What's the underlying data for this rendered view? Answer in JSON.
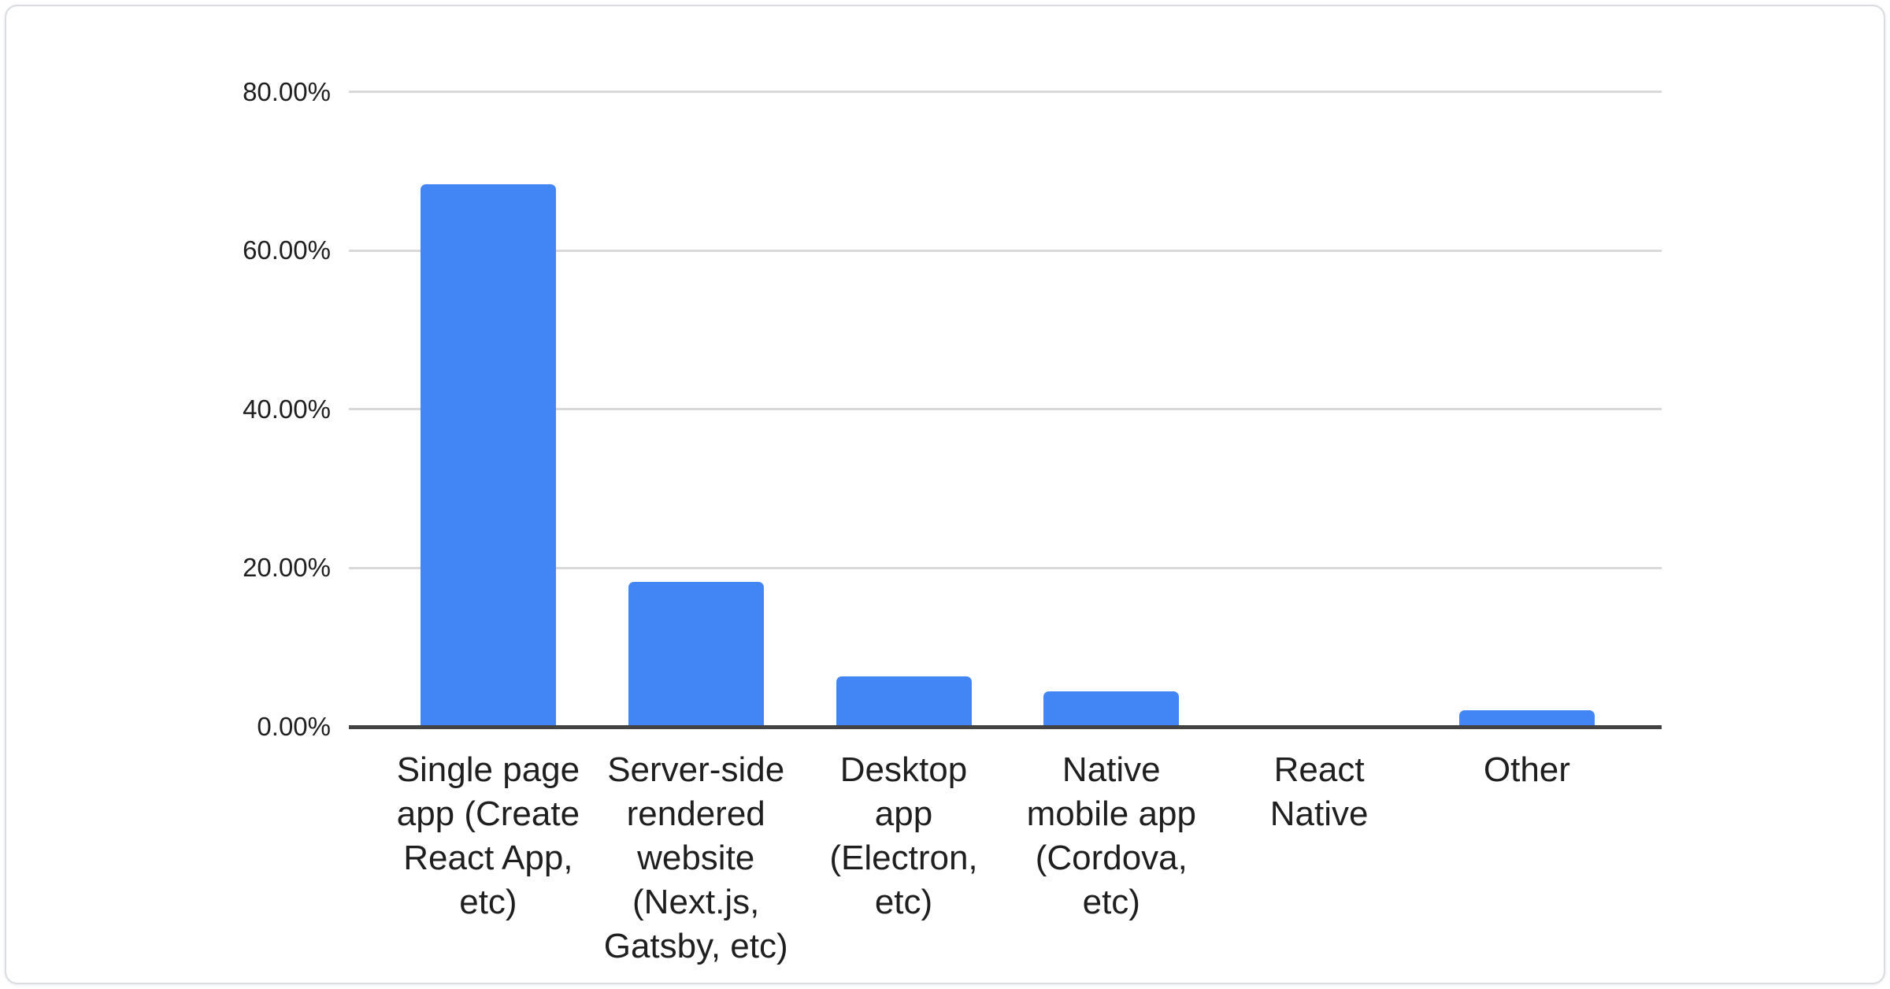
{
  "chart_data": {
    "type": "bar",
    "title": "",
    "xlabel": "",
    "ylabel": "",
    "unit": "percent",
    "ylim": [
      0,
      80
    ],
    "grid": true,
    "legend": "none",
    "categories": [
      "Single page app (Create React App, etc)",
      "Server-side rendered website (Next.js, Gatsby, etc)",
      "Desktop app (Electron, etc)",
      "Native mobile app (Cordova, etc)",
      "React Native",
      "Other"
    ],
    "category_label_lines": [
      [
        "Single page",
        "app (Create",
        "React App,",
        "etc)"
      ],
      [
        "Server-side",
        "rendered",
        "website",
        "(Next.js,",
        "Gatsby, etc)"
      ],
      [
        "Desktop",
        "app",
        "(Electron,",
        "etc)"
      ],
      [
        "Native",
        "mobile app",
        "(Cordova,",
        "etc)"
      ],
      [
        "React",
        "Native"
      ],
      [
        "Other"
      ]
    ],
    "values": [
      68.4,
      18.3,
      6.3,
      4.5,
      0,
      2.1
    ],
    "yticks": [
      {
        "label": "0.00%",
        "value": 0
      },
      {
        "label": "20.00%",
        "value": 20
      },
      {
        "label": "40.00%",
        "value": 40
      },
      {
        "label": "60.00%",
        "value": 60
      },
      {
        "label": "80.00%",
        "value": 80
      }
    ],
    "colors": {
      "bar": "#4285f4",
      "gridline": "#d9d9d9",
      "axis": "#424242",
      "text": "#1f1f1f",
      "card_border": "#dadce0",
      "card_background": "#ffffff",
      "page_background": "#ffffff"
    }
  }
}
